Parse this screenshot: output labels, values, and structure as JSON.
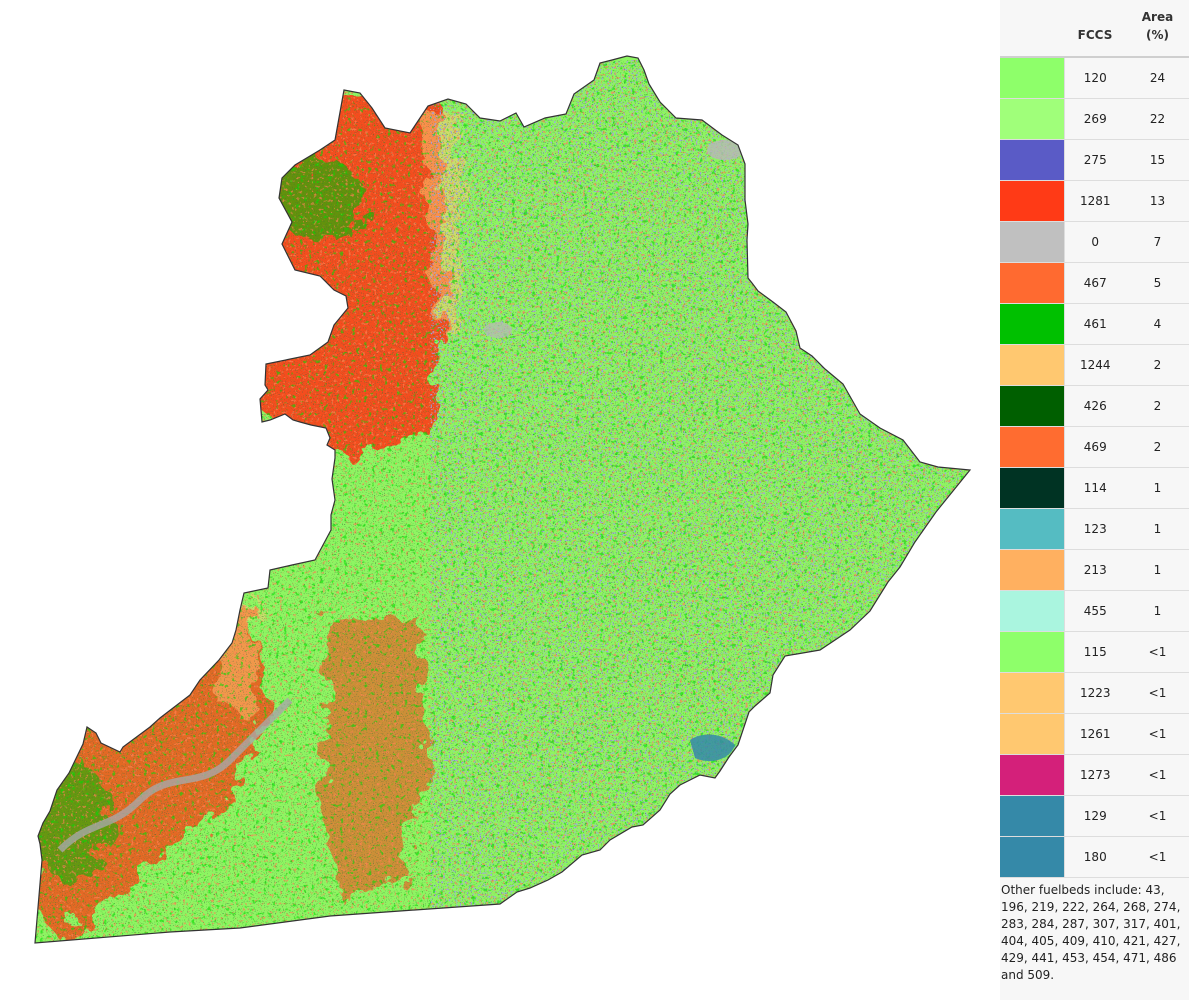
{
  "map": {
    "region": "county-fuelbed-map",
    "colors": {
      "outline": "#333333",
      "base": "#8ef562"
    }
  },
  "legend": {
    "headers": {
      "fccs": "FCCS",
      "area_line1": "Area",
      "area_line2": "(%)"
    },
    "rows": [
      {
        "fccs": "120",
        "area": "24",
        "color": "#8eff6a"
      },
      {
        "fccs": "269",
        "area": "22",
        "color": "#a0ff7a"
      },
      {
        "fccs": "275",
        "area": "15",
        "color": "#5a5bc6"
      },
      {
        "fccs": "1281",
        "area": "13",
        "color": "#ff3a16"
      },
      {
        "fccs": "0",
        "area": "7",
        "color": "#c0c0c0"
      },
      {
        "fccs": "467",
        "area": "5",
        "color": "#ff6a30"
      },
      {
        "fccs": "461",
        "area": "4",
        "color": "#00c000"
      },
      {
        "fccs": "1244",
        "area": "2",
        "color": "#ffc870"
      },
      {
        "fccs": "426",
        "area": "2",
        "color": "#005f00"
      },
      {
        "fccs": "469",
        "area": "2",
        "color": "#ff6c30"
      },
      {
        "fccs": "114",
        "area": "1",
        "color": "#003323"
      },
      {
        "fccs": "123",
        "area": "1",
        "color": "#55bcc2"
      },
      {
        "fccs": "213",
        "area": "1",
        "color": "#ffb060"
      },
      {
        "fccs": "455",
        "area": "1",
        "color": "#aaf5df"
      },
      {
        "fccs": "115",
        "area": "<1",
        "color": "#8eff6a"
      },
      {
        "fccs": "1223",
        "area": "<1",
        "color": "#ffc870"
      },
      {
        "fccs": "1261",
        "area": "<1",
        "color": "#ffc870"
      },
      {
        "fccs": "1273",
        "area": "<1",
        "color": "#d4207a"
      },
      {
        "fccs": "129",
        "area": "<1",
        "color": "#3589a8"
      },
      {
        "fccs": "180",
        "area": "<1",
        "color": "#3589a8"
      }
    ],
    "note": "Other fuelbeds include: 43, 196, 219, 222, 264, 268, 274, 283, 284, 287, 307, 317, 401, 404, 405, 409, 410, 421, 427, 429, 441, 453, 454, 471, 486 and 509."
  }
}
